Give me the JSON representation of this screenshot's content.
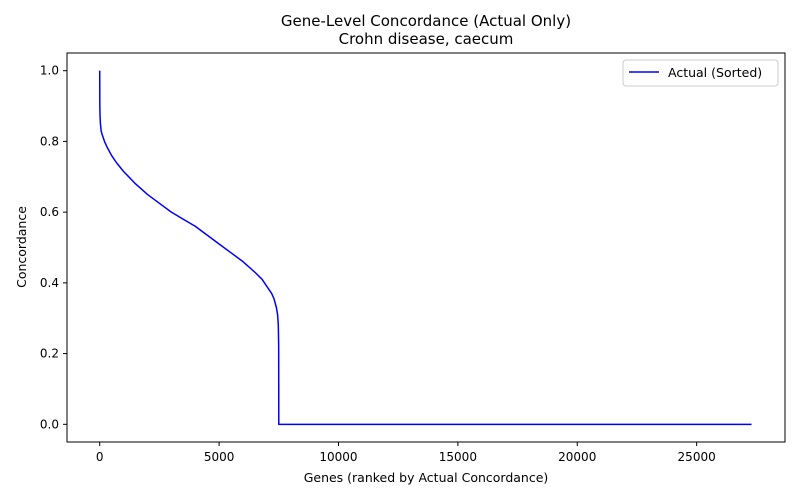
{
  "chart_data": {
    "type": "line",
    "title": "Gene-Level Concordance (Actual Only)",
    "subtitle": "Crohn disease, caecum",
    "xlabel": "Genes (ranked by Actual Concordance)",
    "ylabel": "Concordance",
    "xlim": [
      -1370,
      28700
    ],
    "ylim": [
      -0.05,
      1.05
    ],
    "xticks": [
      0,
      5000,
      10000,
      15000,
      20000,
      25000
    ],
    "xtick_labels": [
      "0",
      "5000",
      "10000",
      "15000",
      "20000",
      "25000"
    ],
    "yticks": [
      0.0,
      0.2,
      0.4,
      0.6,
      0.8,
      1.0
    ],
    "ytick_labels": [
      "0.0",
      "0.2",
      "0.4",
      "0.6",
      "0.8",
      "1.0"
    ],
    "grid": false,
    "legend_position": "top-right",
    "series": [
      {
        "name": "Actual (Sorted)",
        "color": "#0000ff",
        "x": [
          0,
          5,
          15,
          30,
          60,
          100,
          200,
          300,
          500,
          700,
          1000,
          1500,
          2000,
          2500,
          3000,
          3500,
          4000,
          4500,
          5000,
          5500,
          6000,
          6500,
          6800,
          7000,
          7200,
          7300,
          7400,
          7450,
          7480,
          7495,
          7500,
          7500,
          10000,
          15000,
          20000,
          25000,
          27300
        ],
        "y": [
          1.0,
          0.9,
          0.87,
          0.85,
          0.83,
          0.82,
          0.8,
          0.785,
          0.76,
          0.74,
          0.715,
          0.68,
          0.65,
          0.625,
          0.6,
          0.58,
          0.56,
          0.535,
          0.51,
          0.485,
          0.46,
          0.43,
          0.41,
          0.39,
          0.37,
          0.355,
          0.33,
          0.31,
          0.28,
          0.22,
          0.0,
          0.0,
          0.0,
          0.0,
          0.0,
          0.0,
          0.0
        ]
      }
    ]
  }
}
